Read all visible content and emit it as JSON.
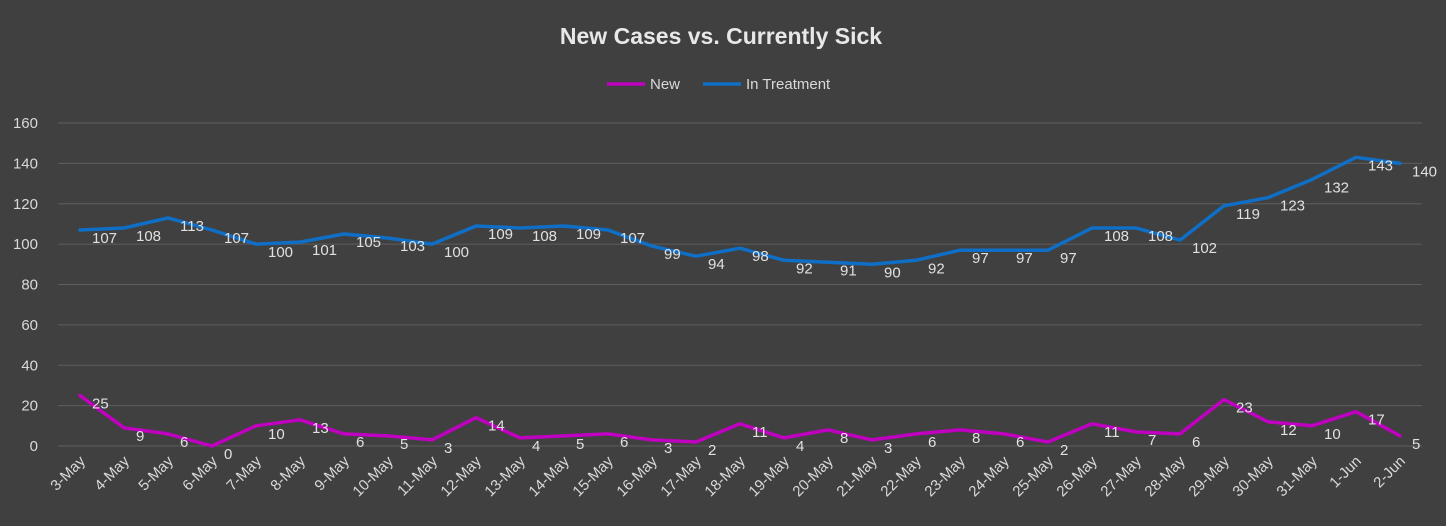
{
  "chart_data": {
    "type": "line",
    "title": "New Cases vs. Currently Sick",
    "xlabel": "",
    "ylabel": "",
    "ylim": [
      0,
      160
    ],
    "yticks": [
      0,
      20,
      40,
      60,
      80,
      100,
      120,
      140,
      160
    ],
    "grid": true,
    "legend_position": "top",
    "background_color": "#404040",
    "categories": [
      "3-May",
      "4-May",
      "5-May",
      "6-May",
      "7-May",
      "8-May",
      "9-May",
      "10-May",
      "11-May",
      "12-May",
      "13-May",
      "14-May",
      "15-May",
      "16-May",
      "17-May",
      "18-May",
      "19-May",
      "20-May",
      "21-May",
      "22-May",
      "23-May",
      "24-May",
      "25-May",
      "26-May",
      "27-May",
      "28-May",
      "29-May",
      "30-May",
      "31-May",
      "1-Jun",
      "2-Jun"
    ],
    "series": [
      {
        "name": "New",
        "color": "#c000c0",
        "values": [
          25,
          9,
          6,
          0,
          10,
          13,
          6,
          5,
          3,
          14,
          4,
          5,
          6,
          3,
          2,
          11,
          4,
          8,
          3,
          6,
          8,
          6,
          2,
          11,
          7,
          6,
          23,
          12,
          10,
          17,
          5
        ]
      },
      {
        "name": "In Treatment",
        "color": "#0f6fc6",
        "values": [
          107,
          108,
          113,
          107,
          100,
          101,
          105,
          103,
          100,
          109,
          108,
          109,
          107,
          99,
          94,
          98,
          92,
          91,
          90,
          92,
          97,
          97,
          97,
          108,
          108,
          102,
          119,
          123,
          132,
          143,
          140
        ]
      }
    ]
  }
}
